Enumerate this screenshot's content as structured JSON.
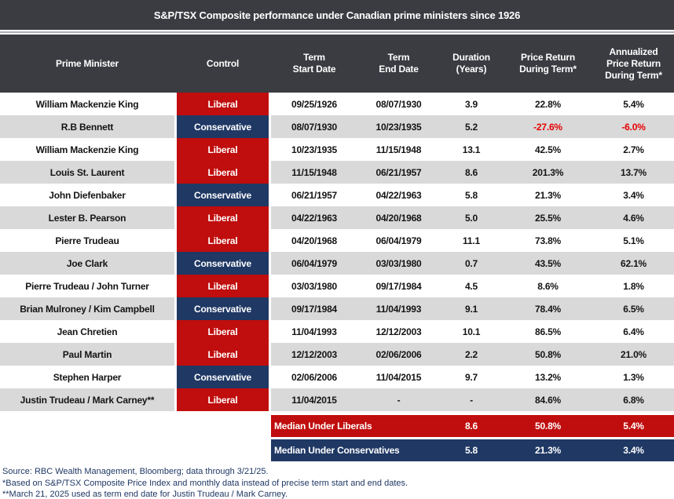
{
  "colors": {
    "header_background": "#3A3C42",
    "liberal_red": "#C00D0D",
    "conservative_navy": "#1F3864",
    "row_stripe_gray": "#D9D9D9",
    "negative_value_red": "#E60000",
    "footnote_navy": "#1F3864",
    "separator_gray": "#A9AFB6"
  },
  "chart_data": {
    "type": "table",
    "title": "S&P/TSX Composite performance under Canadian prime ministers since 1926",
    "columns": [
      "Prime Minister",
      "Control",
      "Term\nStart Date",
      "Term\nEnd Date",
      "Duration\n(Years)",
      "Price Return\nDuring Term*",
      "Annualized\nPrice Return\nDuring Term*"
    ],
    "rows": [
      {
        "name": "William Mackenzie King",
        "control": "Liberal",
        "start": "09/25/1926",
        "end": "08/07/1930",
        "duration": "3.9",
        "price_return": "22.8%",
        "annualized_return": "5.4%"
      },
      {
        "name": "R.B Bennett",
        "control": "Conservative",
        "start": "08/07/1930",
        "end": "10/23/1935",
        "duration": "5.2",
        "price_return": "-27.6%",
        "annualized_return": "-6.0%"
      },
      {
        "name": "William Mackenzie King",
        "control": "Liberal",
        "start": "10/23/1935",
        "end": "11/15/1948",
        "duration": "13.1",
        "price_return": "42.5%",
        "annualized_return": "2.7%"
      },
      {
        "name": "Louis St. Laurent",
        "control": "Liberal",
        "start": "11/15/1948",
        "end": "06/21/1957",
        "duration": "8.6",
        "price_return": "201.3%",
        "annualized_return": "13.7%"
      },
      {
        "name": "John Diefenbaker",
        "control": "Conservative",
        "start": "06/21/1957",
        "end": "04/22/1963",
        "duration": "5.8",
        "price_return": "21.3%",
        "annualized_return": "3.4%"
      },
      {
        "name": "Lester B. Pearson",
        "control": "Liberal",
        "start": "04/22/1963",
        "end": "04/20/1968",
        "duration": "5.0",
        "price_return": "25.5%",
        "annualized_return": "4.6%"
      },
      {
        "name": "Pierre Trudeau",
        "control": "Liberal",
        "start": "04/20/1968",
        "end": "06/04/1979",
        "duration": "11.1",
        "price_return": "73.8%",
        "annualized_return": "5.1%"
      },
      {
        "name": "Joe Clark",
        "control": "Conservative",
        "start": "06/04/1979",
        "end": "03/03/1980",
        "duration": "0.7",
        "price_return": "43.5%",
        "annualized_return": "62.1%"
      },
      {
        "name": "Pierre Trudeau / John Turner",
        "control": "Liberal",
        "start": "03/03/1980",
        "end": "09/17/1984",
        "duration": "4.5",
        "price_return": "8.6%",
        "annualized_return": "1.8%"
      },
      {
        "name": "Brian Mulroney / Kim Campbell",
        "control": "Conservative",
        "start": "09/17/1984",
        "end": "11/04/1993",
        "duration": "9.1",
        "price_return": "78.4%",
        "annualized_return": "6.5%"
      },
      {
        "name": "Jean Chretien",
        "control": "Liberal",
        "start": "11/04/1993",
        "end": "12/12/2003",
        "duration": "10.1",
        "price_return": "86.5%",
        "annualized_return": "6.4%"
      },
      {
        "name": "Paul Martin",
        "control": "Liberal",
        "start": "12/12/2003",
        "end": "02/06/2006",
        "duration": "2.2",
        "price_return": "50.8%",
        "annualized_return": "21.0%"
      },
      {
        "name": "Stephen Harper",
        "control": "Conservative",
        "start": "02/06/2006",
        "end": "11/04/2015",
        "duration": "9.7",
        "price_return": "13.2%",
        "annualized_return": "1.3%"
      },
      {
        "name": "Justin Trudeau / Mark Carney**",
        "control": "Liberal",
        "start": "11/04/2015",
        "end": "-",
        "duration": "-",
        "price_return": "84.6%",
        "annualized_return": "6.8%"
      }
    ],
    "summary_rows": [
      {
        "label": "Median Under Liberals",
        "duration": "8.6",
        "price_return": "50.8%",
        "annualized_return": "5.4%"
      },
      {
        "label": "Median Under Conservatives",
        "duration": "5.8",
        "price_return": "21.3%",
        "annualized_return": "3.4%"
      }
    ],
    "footnotes": [
      "Source: RBC Wealth Management, Bloomberg; data through 3/21/25.",
      "*Based on S&P/TSX Composite Price Index and monthly data instead of precise term start and end dates.",
      "**March 21, 2025 used as term end date for Justin Trudeau / Mark Carney."
    ]
  }
}
